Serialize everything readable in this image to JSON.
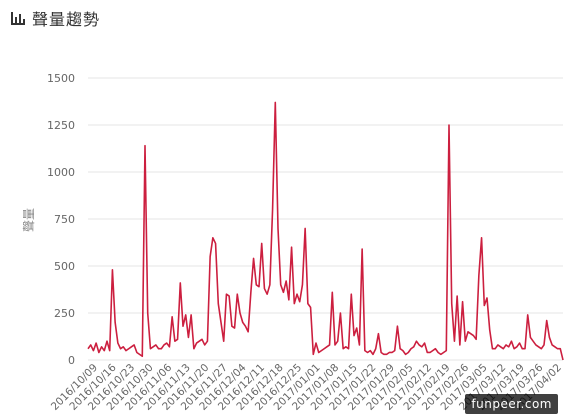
{
  "header": {
    "icon": "bar-chart-icon",
    "title": "聲量趨勢"
  },
  "watermark": "funpeer.com",
  "colors": {
    "line": "#cc1f3f",
    "grid": "#e6e6e6",
    "axis_text": "#666666"
  },
  "chart_data": {
    "type": "line",
    "title": "聲量趨勢",
    "xlabel": "",
    "ylabel": "聲量",
    "ylim": [
      0,
      1500
    ],
    "yticks": [
      0,
      250,
      500,
      750,
      1000,
      1250,
      1500
    ],
    "grid": true,
    "x_tick_labels": [
      "2016/10/09",
      "2016/10/16",
      "2016/10/23",
      "2016/10/30",
      "2016/11/06",
      "2016/11/13",
      "2016/11/20",
      "2016/11/27",
      "2016/12/04",
      "2016/12/11",
      "2016/12/18",
      "2016/12/25",
      "2017/01/01",
      "2017/01/08",
      "2017/01/15",
      "2017/01/22",
      "2017/01/29",
      "2017/02/05",
      "2017/02/12",
      "2017/02/19",
      "2017/02/26",
      "2017/03/05",
      "2017/03/12",
      "2017/03/19",
      "2017/03/26",
      "2017/04/02"
    ],
    "series": [
      {
        "values": [
          60,
          80,
          50,
          90,
          40,
          70,
          50,
          100,
          50,
          480,
          200,
          90,
          60,
          70,
          50,
          60,
          70,
          80,
          40,
          30,
          20,
          1140,
          250,
          60,
          70,
          80,
          60,
          60,
          80,
          90,
          70,
          230,
          100,
          110,
          410,
          180,
          240,
          120,
          240,
          60,
          90,
          100,
          110,
          80,
          100,
          550,
          650,
          620,
          300,
          200,
          100,
          350,
          340,
          180,
          170,
          350,
          250,
          200,
          180,
          150,
          360,
          540,
          400,
          390,
          620,
          380,
          350,
          400,
          800,
          1370,
          700,
          400,
          360,
          420,
          320,
          600,
          300,
          350,
          310,
          400,
          700,
          300,
          280,
          30,
          90,
          40,
          50,
          60,
          70,
          80,
          360,
          80,
          100,
          250,
          60,
          70,
          60,
          350,
          130,
          170,
          80,
          590,
          50,
          40,
          50,
          30,
          60,
          140,
          40,
          30,
          30,
          40,
          40,
          50,
          180,
          60,
          50,
          30,
          40,
          60,
          70,
          100,
          80,
          70,
          90,
          40,
          40,
          50,
          60,
          40,
          30,
          40,
          50,
          1250,
          300,
          100,
          340,
          80,
          310,
          100,
          150,
          140,
          130,
          110,
          450,
          650,
          290,
          330,
          160,
          60,
          60,
          80,
          70,
          60,
          80,
          70,
          100,
          60,
          70,
          90,
          60,
          60,
          240,
          120,
          100,
          80,
          70,
          60,
          80,
          210,
          120,
          80,
          70,
          60,
          60,
          0
        ]
      }
    ]
  }
}
